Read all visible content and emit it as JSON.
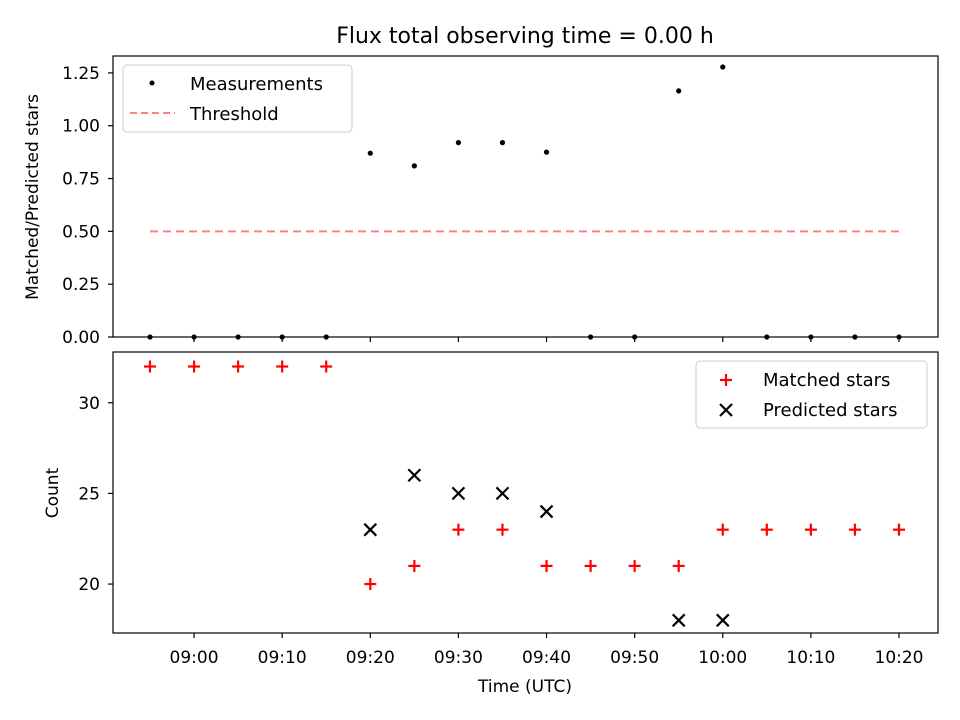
{
  "figure": {
    "title": "Flux total observing time = 0.00 h"
  },
  "chart_data": [
    {
      "type": "scatter",
      "ylabel": "Matched/Predicted stars",
      "xlabel": "",
      "ylim": [
        0,
        1.33
      ],
      "yticks": [
        "0.00",
        "0.25",
        "0.50",
        "0.75",
        "1.00",
        "1.25"
      ],
      "x_time_labels": [
        "08:55",
        "09:00",
        "09:05",
        "09:10",
        "09:15",
        "09:20",
        "09:25",
        "09:30",
        "09:35",
        "09:40",
        "09:45",
        "09:50",
        "09:55",
        "10:00",
        "10:05",
        "10:10",
        "10:15",
        "10:20"
      ],
      "series": [
        {
          "name": "Measurements",
          "marker": "dot",
          "color": "#000000",
          "values": [
            0,
            0,
            0,
            0,
            0,
            0.87,
            0.81,
            0.92,
            0.92,
            0.875,
            0,
            0,
            1.165,
            1.278,
            0,
            0,
            0,
            0
          ]
        },
        {
          "name": "Threshold",
          "marker": "dashed-line",
          "color": "#ff8080",
          "x_range": [
            "08:55",
            "10:20"
          ],
          "value": 0.5
        }
      ],
      "legend": "top-left"
    },
    {
      "type": "scatter",
      "ylabel": "Count",
      "xlabel": "Time (UTC)",
      "ylim": [
        17.3,
        32.8
      ],
      "yticks": [
        "20",
        "25",
        "30"
      ],
      "xticks": [
        "09:00",
        "09:10",
        "09:20",
        "09:30",
        "09:40",
        "09:50",
        "10:00",
        "10:10",
        "10:20"
      ],
      "series": [
        {
          "name": "Matched stars",
          "marker": "plus",
          "color": "#ff0000",
          "x": [
            "08:55",
            "09:00",
            "09:05",
            "09:10",
            "09:15",
            "09:20",
            "09:25",
            "09:30",
            "09:35",
            "09:40",
            "09:45",
            "09:50",
            "09:55",
            "10:00",
            "10:05",
            "10:10",
            "10:15",
            "10:20"
          ],
          "values": [
            32,
            32,
            32,
            32,
            32,
            20,
            21,
            23,
            23,
            21,
            21,
            21,
            21,
            23,
            23,
            23,
            23,
            23
          ]
        },
        {
          "name": "Predicted stars",
          "marker": "x",
          "color": "#000000",
          "x": [
            "09:20",
            "09:25",
            "09:30",
            "09:35",
            "09:40",
            "09:55",
            "10:00"
          ],
          "values": [
            23,
            26,
            25,
            25,
            24,
            18,
            18
          ]
        }
      ],
      "legend": "top-right"
    }
  ]
}
